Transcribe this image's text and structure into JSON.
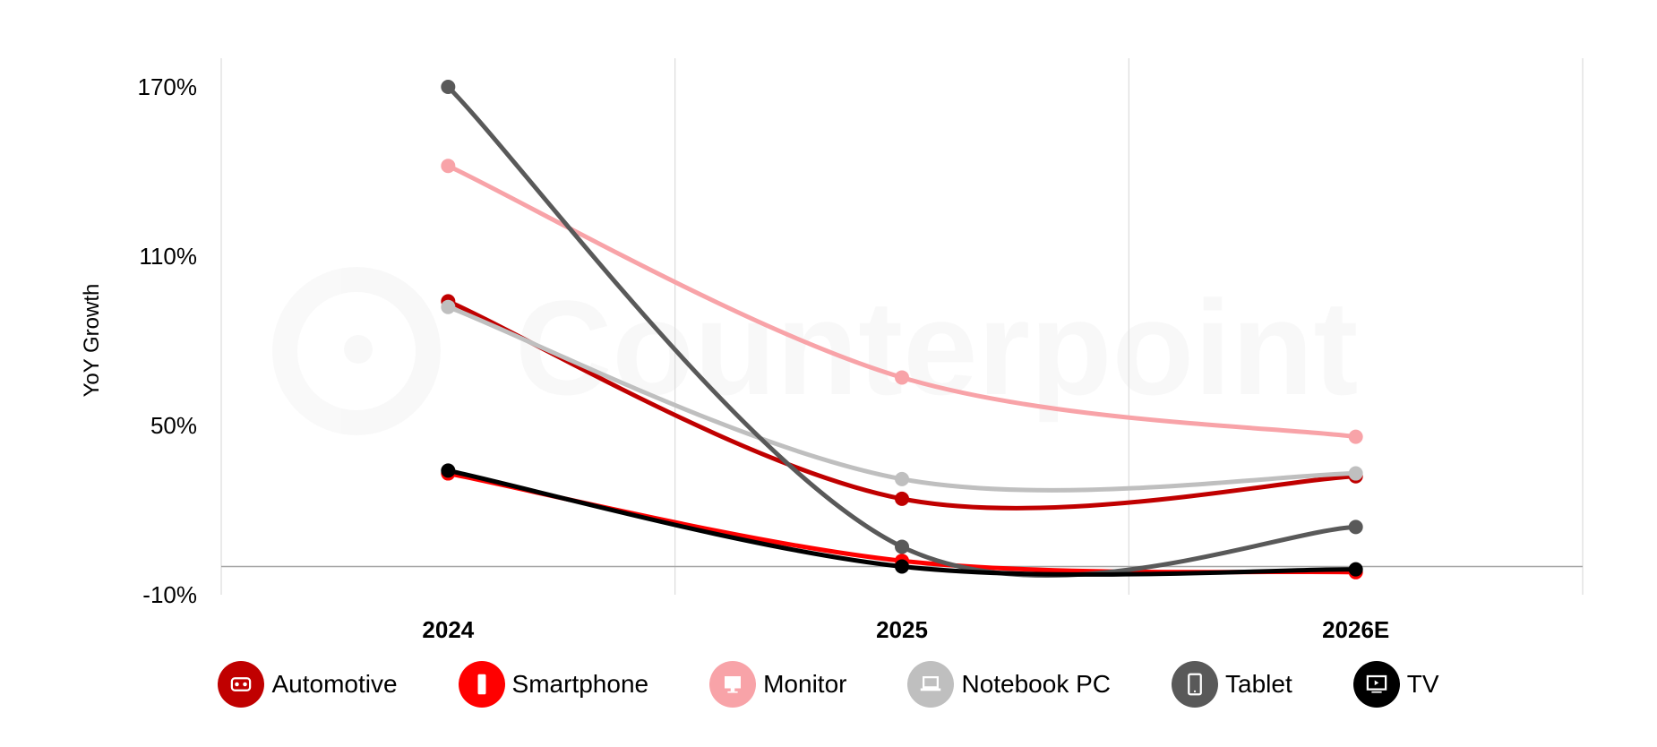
{
  "chart_data": {
    "type": "line",
    "categories": [
      "2024",
      "2025",
      "2026E"
    ],
    "ylabel": "YoY Growth",
    "xlabel": "",
    "ylim": [
      -10,
      170
    ],
    "yticks": [
      "170%",
      "110%",
      "50%",
      "-10%"
    ],
    "ytick_values": [
      170,
      110,
      50,
      -10
    ],
    "grid": "vertical",
    "legend_position": "bottom",
    "watermark": "Counterpoint",
    "series": [
      {
        "name": "Automotive",
        "color": "#C00000",
        "icon": "car-dashboard-icon",
        "values": [
          94,
          24,
          32
        ]
      },
      {
        "name": "Smartphone",
        "color": "#FF0000",
        "icon": "smartphone-icon",
        "values": [
          33,
          2,
          -2
        ]
      },
      {
        "name": "Monitor",
        "color": "#F8A3A8",
        "icon": "monitor-icon",
        "values": [
          142,
          67,
          46
        ]
      },
      {
        "name": "Notebook PC",
        "color": "#BFBFBF",
        "icon": "laptop-icon",
        "values": [
          92,
          31,
          33
        ]
      },
      {
        "name": "Tablet",
        "color": "#595959",
        "icon": "tablet-icon",
        "values": [
          170,
          7,
          14
        ]
      },
      {
        "name": "TV",
        "color": "#000000",
        "icon": "tv-icon",
        "values": [
          34,
          0,
          -1
        ]
      }
    ]
  }
}
